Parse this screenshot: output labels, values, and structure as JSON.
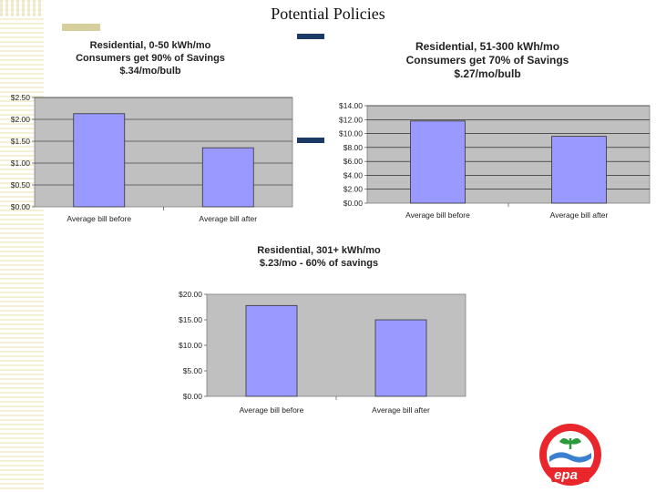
{
  "page": {
    "title": "Potential Policies"
  },
  "colors": {
    "bar": "#9999ff",
    "plot_bg": "#c0c0c0",
    "accent": "#1b3a66",
    "logo_red": "#e8262b",
    "logo_green": "#2a9a3c"
  },
  "logo": {
    "text": "epa"
  },
  "chart_data": [
    {
      "type": "bar",
      "title_lines": [
        "Residential, 0-50 kWh/mo",
        "Consumers get 90% of Savings",
        "$.34/mo/bulb"
      ],
      "categories": [
        "Average bill before",
        "Average bill after"
      ],
      "values": [
        2.13,
        1.35
      ],
      "ylim": [
        0,
        2.5
      ],
      "ticks": [
        0,
        0.5,
        1,
        1.5,
        2,
        2.5
      ],
      "tick_labels": [
        "$0.00",
        "$0.50",
        "$1.00",
        "$1.50",
        "$2.00",
        "$2.50"
      ],
      "grid": true
    },
    {
      "type": "bar",
      "title_lines": [
        "Residential, 51-300 kWh/mo",
        "Consumers get 70% of Savings",
        "$.27/mo/bulb"
      ],
      "categories": [
        "Average bill before",
        "Average bill after"
      ],
      "values": [
        11.8,
        9.6
      ],
      "ylim": [
        0,
        14
      ],
      "ticks": [
        0,
        2,
        4,
        6,
        8,
        10,
        12,
        14
      ],
      "tick_labels": [
        "$0.00",
        "$2.00",
        "$4.00",
        "$6.00",
        "$8.00",
        "$10.00",
        "$12.00",
        "$14.00"
      ],
      "grid": true
    },
    {
      "type": "bar",
      "title_lines": [
        "Residential, 301+ kWh/mo",
        "$.23/mo - 60% of savings"
      ],
      "categories": [
        "Average bill before",
        "Average bill after"
      ],
      "values": [
        17.8,
        15.0
      ],
      "ylim": [
        0,
        20
      ],
      "ticks": [
        0,
        5,
        10,
        15,
        20
      ],
      "tick_labels": [
        "$0.00",
        "$5.00",
        "$10.00",
        "$15.00",
        "$20.00"
      ],
      "grid": false
    }
  ]
}
